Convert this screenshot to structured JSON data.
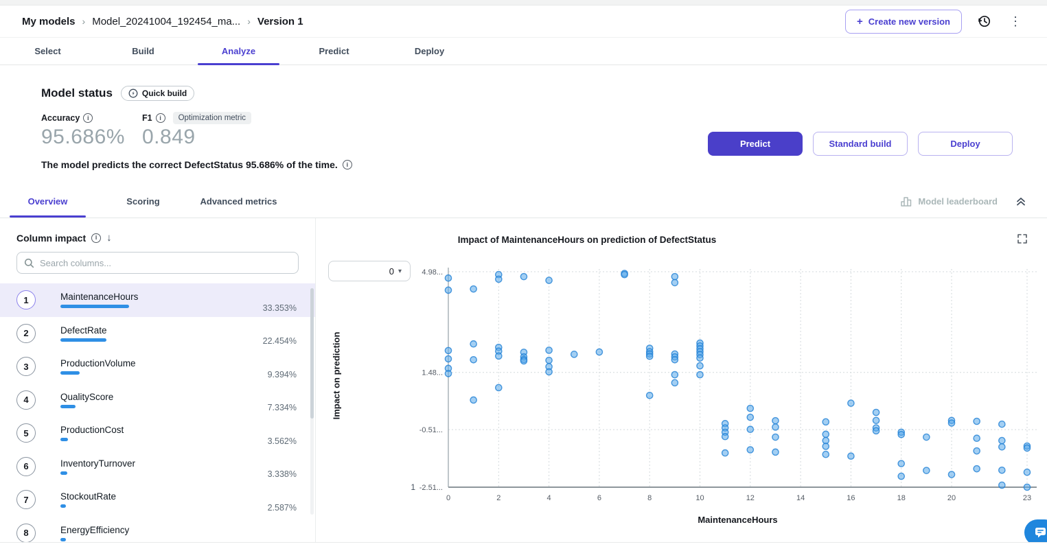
{
  "header": {
    "breadcrumb": {
      "items": [
        "My models",
        "Model_20241004_192454_ma...",
        "Version 1"
      ],
      "separator": "›"
    },
    "create_version_label": "Create new version",
    "plus_glyph": "+",
    "kebab_glyph": "⋮"
  },
  "main_tabs": {
    "items": [
      {
        "label": "Select"
      },
      {
        "label": "Build"
      },
      {
        "label": "Analyze"
      },
      {
        "label": "Predict"
      },
      {
        "label": "Deploy"
      }
    ],
    "active": "Analyze"
  },
  "model_status": {
    "title": "Model status",
    "build_badge": "Quick build",
    "metrics": [
      {
        "label": "Accuracy",
        "value": "95.686%"
      },
      {
        "label": "F1",
        "value": "0.849",
        "badge": "Optimization metric"
      }
    ],
    "caption": "The model predicts the correct DefectStatus 95.686% of the time.",
    "buttons": {
      "predict": "Predict",
      "standard_build": "Standard build",
      "deploy": "Deploy"
    }
  },
  "sub_tabs": {
    "items": [
      {
        "label": "Overview"
      },
      {
        "label": "Scoring"
      },
      {
        "label": "Advanced metrics"
      }
    ],
    "active": "Overview",
    "leaderboard_label": "Model leaderboard"
  },
  "column_impact": {
    "title": "Column impact",
    "sort_glyph": "↓",
    "search_placeholder": "Search columns...",
    "search_value": "",
    "items": [
      {
        "rank": "1",
        "name": "MaintenanceHours",
        "impact": "33.353%",
        "pct": 33.353,
        "selected": true
      },
      {
        "rank": "2",
        "name": "DefectRate",
        "impact": "22.454%",
        "pct": 22.454,
        "selected": false
      },
      {
        "rank": "3",
        "name": "ProductionVolume",
        "impact": "9.394%",
        "pct": 9.394,
        "selected": false
      },
      {
        "rank": "4",
        "name": "QualityScore",
        "impact": "7.334%",
        "pct": 7.334,
        "selected": false
      },
      {
        "rank": "5",
        "name": "ProductionCost",
        "impact": "3.562%",
        "pct": 3.562,
        "selected": false
      },
      {
        "rank": "6",
        "name": "InventoryTurnover",
        "impact": "3.338%",
        "pct": 3.338,
        "selected": false
      },
      {
        "rank": "7",
        "name": "StockoutRate",
        "impact": "2.587%",
        "pct": 2.587,
        "selected": false
      },
      {
        "rank": "8",
        "name": "EnergyEfficiency",
        "impact": "",
        "pct": 2.0,
        "selected": false
      }
    ]
  },
  "chart": {
    "dropdown_value": "0",
    "caret_glyph": "▾"
  },
  "chart_data": {
    "type": "scatter",
    "title": "Impact of MaintenanceHours on prediction of DefectStatus",
    "xlabel": "MaintenanceHours",
    "ylabel": "Impact on prediction",
    "xlim": [
      0,
      23
    ],
    "ylim": [
      -2.51,
      4.98
    ],
    "x_ticks": [
      0,
      2,
      4,
      6,
      8,
      10,
      12,
      14,
      16,
      18,
      20,
      23
    ],
    "y_ticks": [
      {
        "value": 4.98,
        "label": "4.98..."
      },
      {
        "value": 1.48,
        "label": "1.48..."
      },
      {
        "value": -0.51,
        "label": "-0.51..."
      },
      {
        "value": -2.51,
        "label": "-2.51..."
      }
    ],
    "extra_y_label": "1",
    "grid": true,
    "legend_position": "none",
    "points": [
      [
        0,
        4.76
      ],
      [
        0,
        4.34
      ],
      [
        0,
        2.24
      ],
      [
        0,
        1.95
      ],
      [
        0,
        1.62
      ],
      [
        0,
        1.44
      ],
      [
        1,
        4.38
      ],
      [
        1,
        2.47
      ],
      [
        1,
        1.92
      ],
      [
        1,
        0.52
      ],
      [
        2,
        4.88
      ],
      [
        2,
        4.72
      ],
      [
        2,
        2.35
      ],
      [
        2,
        2.22
      ],
      [
        2,
        2.05
      ],
      [
        2,
        0.95
      ],
      [
        3,
        4.81
      ],
      [
        3,
        2.18
      ],
      [
        3,
        2.02
      ],
      [
        3,
        1.93
      ],
      [
        3,
        1.88
      ],
      [
        4,
        4.68
      ],
      [
        4,
        2.25
      ],
      [
        4,
        1.9
      ],
      [
        4,
        1.68
      ],
      [
        4,
        1.5
      ],
      [
        5,
        2.11
      ],
      [
        6,
        2.19
      ],
      [
        7,
        4.92
      ],
      [
        7,
        4.88
      ],
      [
        8,
        2.32
      ],
      [
        8,
        2.2
      ],
      [
        8,
        2.12
      ],
      [
        8,
        2.04
      ],
      [
        8,
        0.68
      ],
      [
        9,
        4.81
      ],
      [
        9,
        4.6
      ],
      [
        9,
        2.12
      ],
      [
        9,
        2.02
      ],
      [
        9,
        1.92
      ],
      [
        9,
        1.4
      ],
      [
        9,
        1.12
      ],
      [
        10,
        2.5
      ],
      [
        10,
        2.4
      ],
      [
        10,
        2.3
      ],
      [
        10,
        2.2
      ],
      [
        10,
        2.1
      ],
      [
        10,
        1.98
      ],
      [
        10,
        1.71
      ],
      [
        10,
        1.4
      ],
      [
        11,
        -0.3
      ],
      [
        11,
        -0.45
      ],
      [
        11,
        -0.6
      ],
      [
        11,
        -0.75
      ],
      [
        11,
        -1.32
      ],
      [
        12,
        0.23
      ],
      [
        12,
        -0.08
      ],
      [
        12,
        -0.5
      ],
      [
        12,
        -1.21
      ],
      [
        13,
        -0.2
      ],
      [
        13,
        -0.42
      ],
      [
        13,
        -0.77
      ],
      [
        13,
        -1.29
      ],
      [
        15,
        -0.24
      ],
      [
        15,
        -0.67
      ],
      [
        15,
        -0.89
      ],
      [
        15,
        -1.09
      ],
      [
        15,
        -1.37
      ],
      [
        16,
        0.41
      ],
      [
        16,
        -1.43
      ],
      [
        17,
        0.09
      ],
      [
        17,
        -0.19
      ],
      [
        17,
        -0.45
      ],
      [
        17,
        -0.55
      ],
      [
        18,
        -0.6
      ],
      [
        18,
        -0.68
      ],
      [
        18,
        -1.69
      ],
      [
        18,
        -2.13
      ],
      [
        19,
        -0.77
      ],
      [
        19,
        -1.93
      ],
      [
        20,
        -0.19
      ],
      [
        20,
        -0.28
      ],
      [
        20,
        -2.07
      ],
      [
        21,
        -0.22
      ],
      [
        21,
        -0.81
      ],
      [
        21,
        -1.25
      ],
      [
        21,
        -1.87
      ],
      [
        22,
        -0.32
      ],
      [
        22,
        -0.89
      ],
      [
        22,
        -1.11
      ],
      [
        22,
        -1.92
      ],
      [
        22,
        -2.44
      ],
      [
        23,
        -1.08
      ],
      [
        23,
        -1.15
      ],
      [
        23,
        -1.99
      ],
      [
        23,
        -2.51
      ]
    ]
  },
  "icons": {
    "plus": "plus-icon",
    "history": "history-icon",
    "kebab": "kebab-menu-icon",
    "quick_build": "quick-build-icon",
    "info": "info-icon",
    "leaderboard": "bar-chart-icon",
    "collapse": "double-chevron-up-icon",
    "sort": "sort-descending-icon",
    "search": "search-icon",
    "expand": "expand-icon",
    "caret": "chevron-down-icon",
    "chat": "chat-bubble-icon"
  },
  "colors": {
    "accent": "#4a3fd0",
    "primary_button": "#4a3fc9",
    "impact_bar": "#2f8fe5",
    "point_fill": "#57a8ea",
    "point_stroke": "#1f7fd4",
    "selected_row_bg": "#edecfa",
    "chat_fab": "#1f86dd"
  }
}
